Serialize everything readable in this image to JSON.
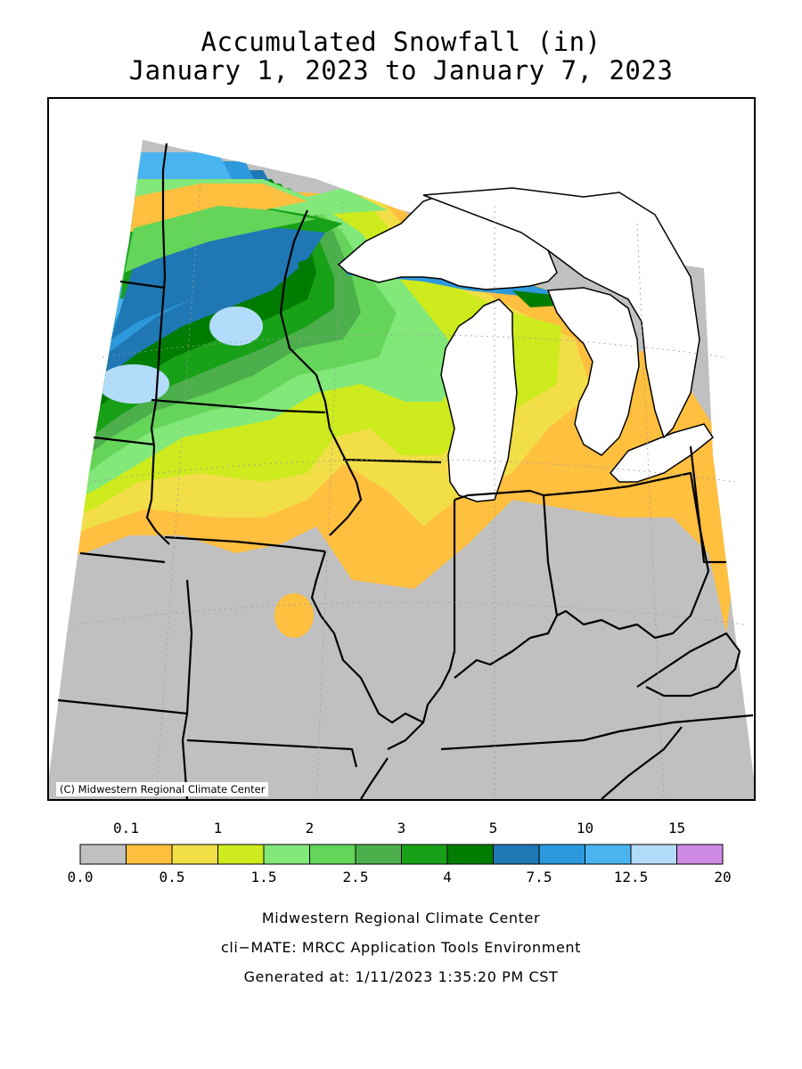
{
  "title": {
    "line1": "Accumulated Snowfall (in)",
    "line2": "January 1, 2023 to January 7, 2023"
  },
  "map": {
    "copyright": "(C) Midwestern Regional Climate Center",
    "region": "Midwest US",
    "colors": {
      "land_no_snow": "#c0c0c0",
      "water": "#ffffff",
      "boundary": "#000000"
    }
  },
  "legend": {
    "bins": [
      {
        "range": "0.0–0.1",
        "color": "#c0c0c0"
      },
      {
        "range": "0.1–0.5",
        "color": "#ffbf3f"
      },
      {
        "range": "0.5–1",
        "color": "#f2de47"
      },
      {
        "range": "1–1.5",
        "color": "#cdeb1d"
      },
      {
        "range": "1.5–2",
        "color": "#82e87a"
      },
      {
        "range": "2–2.5",
        "color": "#64d559"
      },
      {
        "range": "2.5–3",
        "color": "#4caf4c"
      },
      {
        "range": "3–4",
        "color": "#18a018"
      },
      {
        "range": "4–5",
        "color": "#007d00"
      },
      {
        "range": "5–7.5",
        "color": "#1f78b4"
      },
      {
        "range": "7.5–10",
        "color": "#2c99dc"
      },
      {
        "range": "10–12.5",
        "color": "#49b4f0"
      },
      {
        "range": "12.5–15",
        "color": "#b3dcfa"
      },
      {
        "range": "15–20",
        "color": "#cf8ae6"
      }
    ],
    "top_labels": [
      {
        "text": "0.1",
        "index": 1
      },
      {
        "text": "1",
        "index": 3
      },
      {
        "text": "2",
        "index": 5
      },
      {
        "text": "3",
        "index": 7
      },
      {
        "text": "5",
        "index": 9
      },
      {
        "text": "10",
        "index": 11
      },
      {
        "text": "15",
        "index": 13
      }
    ],
    "bottom_labels": [
      {
        "text": "0.0",
        "index": 0
      },
      {
        "text": "0.5",
        "index": 2
      },
      {
        "text": "1.5",
        "index": 4
      },
      {
        "text": "2.5",
        "index": 6
      },
      {
        "text": "4",
        "index": 8
      },
      {
        "text": "7.5",
        "index": 10
      },
      {
        "text": "12.5",
        "index": 12
      },
      {
        "text": "20",
        "index": 14
      }
    ]
  },
  "footer": {
    "line1": "Midwestern Regional Climate Center",
    "line2": "cli−MATE: MRCC Application Tools Environment",
    "line3": "Generated at: 1/11/2023 1:35:20 PM CST"
  }
}
